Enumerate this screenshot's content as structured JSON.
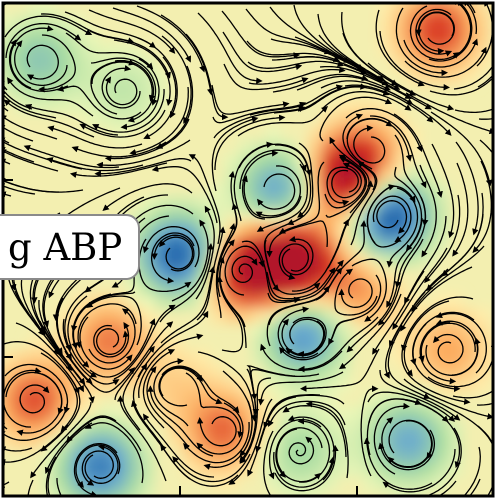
{
  "chart_data": {
    "type": "heatmap",
    "description_label": "g ABP",
    "title": "",
    "xlabel": "",
    "ylabel": "",
    "colormap": [
      "#2166ac",
      "#67a9cf",
      "#a6dba0",
      "#ffffbf",
      "#fdae61",
      "#d7301f",
      "#b2182b"
    ],
    "frame_color": "#000000",
    "streamline_color": "#000000",
    "vortices": [
      {
        "cx": 0.25,
        "cy": 0.18,
        "value": -0.2,
        "spin": 1
      },
      {
        "cx": 0.88,
        "cy": 0.06,
        "value": 0.55,
        "spin": -1
      },
      {
        "cx": 0.74,
        "cy": 0.3,
        "value": 0.25,
        "spin": 1
      },
      {
        "cx": 0.7,
        "cy": 0.36,
        "value": 0.9,
        "spin": -1
      },
      {
        "cx": 0.78,
        "cy": 0.43,
        "value": -1.0,
        "spin": 1
      },
      {
        "cx": 0.56,
        "cy": 0.38,
        "value": -0.6,
        "spin": 1
      },
      {
        "cx": 0.36,
        "cy": 0.51,
        "value": -0.9,
        "spin": -1
      },
      {
        "cx": 0.49,
        "cy": 0.54,
        "value": 0.75,
        "spin": 1
      },
      {
        "cx": 0.59,
        "cy": 0.52,
        "value": 1.0,
        "spin": -1
      },
      {
        "cx": 0.72,
        "cy": 0.58,
        "value": 0.35,
        "spin": 1
      },
      {
        "cx": 0.22,
        "cy": 0.68,
        "value": 0.4,
        "spin": -1
      },
      {
        "cx": 0.61,
        "cy": 0.67,
        "value": -0.65,
        "spin": 1
      },
      {
        "cx": 0.9,
        "cy": 0.7,
        "value": 0.3,
        "spin": -1
      },
      {
        "cx": 0.07,
        "cy": 0.8,
        "value": 0.5,
        "spin": 1
      },
      {
        "cx": 0.2,
        "cy": 0.93,
        "value": -0.75,
        "spin": -1
      },
      {
        "cx": 0.45,
        "cy": 0.86,
        "value": 0.45,
        "spin": 1
      },
      {
        "cx": 0.6,
        "cy": 0.9,
        "value": -0.3,
        "spin": -1
      },
      {
        "cx": 0.82,
        "cy": 0.88,
        "value": -0.55,
        "spin": 1
      },
      {
        "cx": 0.08,
        "cy": 0.12,
        "value": -0.4,
        "spin": 1
      },
      {
        "cx": 0.35,
        "cy": 0.77,
        "value": 0.15,
        "spin": 1
      }
    ]
  }
}
